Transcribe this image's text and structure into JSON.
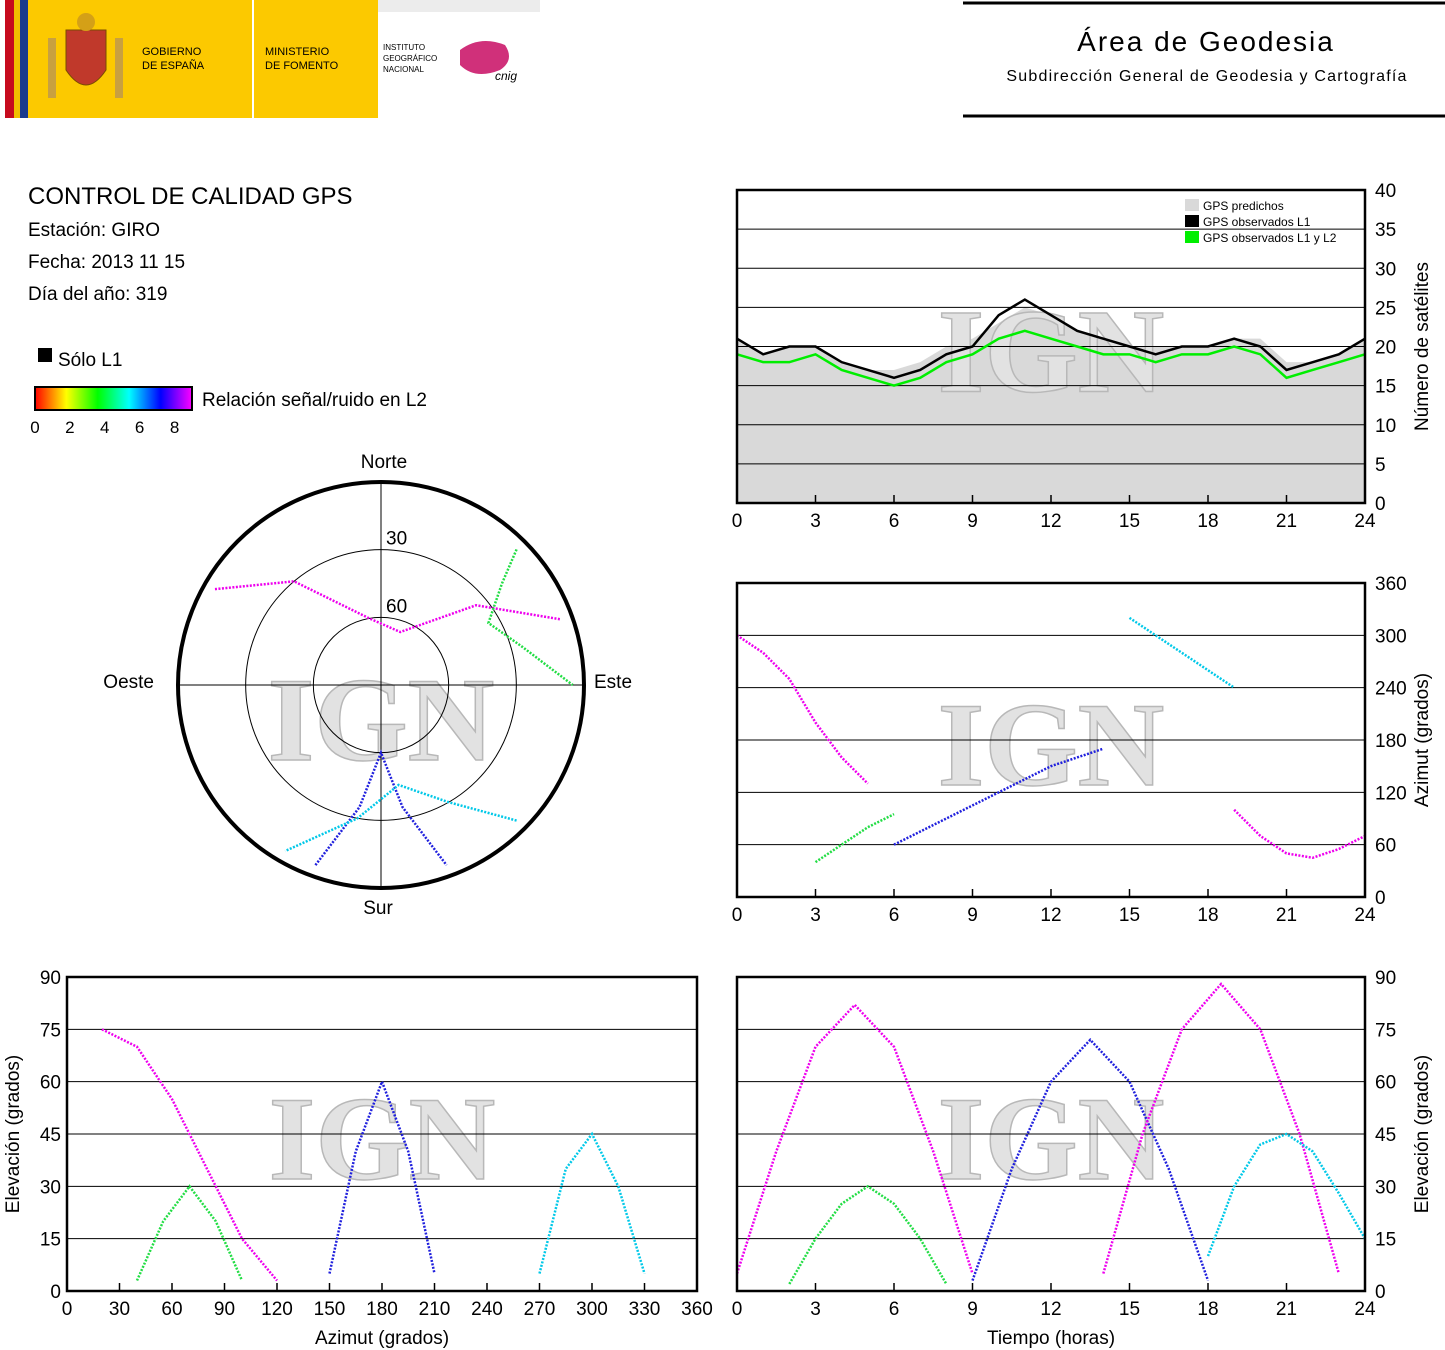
{
  "header": {
    "gov": [
      "GOBIERNO",
      "DE ESPAÑA"
    ],
    "ministry": [
      "MINISTERIO",
      "DE FOMENTO"
    ],
    "institute": [
      "INSTITUTO",
      "GEOGRÁFICO",
      "NACIONAL"
    ],
    "logo": "cnig",
    "title": "Área de Geodesia",
    "subtitle": "Subdirección General de Geodesia y Cartografía"
  },
  "info": {
    "title": "CONTROL DE CALIDAD GPS",
    "lines": [
      "Estación: GIRO",
      "Fecha: 2013 11 15",
      "Día del año: 319"
    ]
  },
  "legend": {
    "l1": "Sólo L1",
    "snr_label": "Relación señal/ruido en L2",
    "snr_lim": [
      0,
      9
    ],
    "snr_ticks": [
      0,
      2,
      4,
      6,
      8
    ],
    "snr_colors": [
      "#ff0000",
      "#ffff00",
      "#00ff00",
      "#00ffff",
      "#0000ff",
      "#ff00ff"
    ]
  },
  "watermark": "IGN",
  "chart_data": [
    {
      "type": "line",
      "x": [
        0,
        1,
        2,
        3,
        4,
        5,
        6,
        7,
        8,
        9,
        10,
        11,
        12,
        13,
        14,
        15,
        16,
        17,
        18,
        19,
        20,
        21,
        22,
        23,
        24
      ],
      "series": [
        {
          "name": "GPS predichos",
          "color": "#d9d9d9",
          "area": true,
          "values": [
            21,
            19,
            20,
            20,
            18,
            17,
            17,
            18,
            20,
            21,
            23,
            25,
            24,
            22,
            21,
            20,
            20,
            20,
            20,
            21,
            21,
            18,
            18,
            19,
            21
          ]
        },
        {
          "name": "GPS observados L1",
          "color": "#000000",
          "values": [
            21,
            19,
            20,
            20,
            18,
            17,
            16,
            17,
            19,
            20,
            24,
            26,
            24,
            22,
            21,
            20,
            19,
            20,
            20,
            21,
            20,
            17,
            18,
            19,
            21
          ]
        },
        {
          "name": "GPS observados L1 y L2",
          "color": "#00ee00",
          "values": [
            19,
            18,
            18,
            19,
            17,
            16,
            15,
            16,
            18,
            19,
            21,
            22,
            21,
            20,
            19,
            19,
            18,
            19,
            19,
            20,
            19,
            16,
            17,
            18,
            19
          ]
        }
      ],
      "xlim": [
        0,
        24
      ],
      "xticks": [
        0,
        3,
        6,
        9,
        12,
        15,
        18,
        21,
        24
      ],
      "ylim": [
        0,
        40
      ],
      "yticks": [
        0,
        5,
        10,
        15,
        20,
        25,
        30,
        35,
        40
      ],
      "ylabel": "Número de satélites",
      "y_axis_position": "right",
      "grid": true,
      "legend": "top-right"
    },
    {
      "type": "scatter",
      "series": [
        {
          "color": "#ee00ee",
          "x": [
            0,
            1,
            2,
            3,
            4,
            5
          ],
          "values": [
            300,
            280,
            250,
            200,
            160,
            130
          ]
        },
        {
          "color": "#2020dd",
          "x": [
            6,
            8,
            10,
            12,
            14
          ],
          "values": [
            60,
            90,
            120,
            150,
            170
          ]
        },
        {
          "color": "#00c8e8",
          "x": [
            15,
            16,
            17,
            18,
            19
          ],
          "values": [
            320,
            300,
            280,
            260,
            240
          ]
        },
        {
          "color": "#ee00ee",
          "x": [
            19,
            20,
            21,
            22,
            23,
            24
          ],
          "values": [
            100,
            70,
            50,
            45,
            55,
            70
          ]
        },
        {
          "color": "#22dd44",
          "x": [
            3,
            4,
            5,
            6
          ],
          "values": [
            40,
            60,
            80,
            95
          ]
        }
      ],
      "xlim": [
        0,
        24
      ],
      "xticks": [
        0,
        3,
        6,
        9,
        12,
        15,
        18,
        21,
        24
      ],
      "ylim": [
        0,
        360
      ],
      "yticks": [
        0,
        60,
        120,
        180,
        240,
        300,
        360
      ],
      "ylabel": "Azimut (grados)",
      "y_axis_position": "right",
      "grid": true
    },
    {
      "type": "polar",
      "directions": [
        "Norte",
        "Este",
        "Sur",
        "Oeste"
      ],
      "rlim": [
        90,
        0
      ],
      "rticks": [
        30,
        60
      ],
      "series": [
        {
          "color": "#ee00ee",
          "x": [
            300,
            320,
            350,
            20,
            50,
            70
          ],
          "values": [
            5,
            30,
            60,
            65,
            35,
            5
          ]
        },
        {
          "color": "#2020dd",
          "x": [
            200,
            190,
            180,
            170,
            160
          ],
          "values": [
            5,
            35,
            60,
            35,
            5
          ]
        },
        {
          "color": "#22dd44",
          "x": [
            45,
            50,
            60,
            75,
            90
          ],
          "values": [
            5,
            20,
            35,
            25,
            5
          ]
        },
        {
          "color": "#00c8e8",
          "x": [
            135,
            150,
            170,
            190,
            210
          ],
          "values": [
            5,
            30,
            45,
            30,
            5
          ]
        }
      ]
    },
    {
      "type": "scatter",
      "series": [
        {
          "color": "#ee00ee",
          "x": [
            20,
            40,
            60,
            80,
            100,
            120
          ],
          "values": [
            75,
            70,
            55,
            35,
            15,
            3
          ]
        },
        {
          "color": "#2020dd",
          "x": [
            150,
            165,
            180,
            195,
            210
          ],
          "values": [
            5,
            40,
            60,
            40,
            5
          ]
        },
        {
          "color": "#00c8e8",
          "x": [
            270,
            285,
            300,
            315,
            330
          ],
          "values": [
            5,
            35,
            45,
            30,
            5
          ]
        },
        {
          "color": "#22dd44",
          "x": [
            40,
            55,
            70,
            85,
            100
          ],
          "values": [
            3,
            20,
            30,
            20,
            3
          ]
        }
      ],
      "xlim": [
        0,
        360
      ],
      "xticks": [
        0,
        30,
        60,
        90,
        120,
        150,
        180,
        210,
        240,
        270,
        300,
        330,
        360
      ],
      "ylim": [
        0,
        90
      ],
      "yticks": [
        0,
        15,
        30,
        45,
        60,
        75,
        90
      ],
      "xlabel": "Azimut (grados)",
      "ylabel": "Elevación (grados)",
      "y_axis_position": "left",
      "grid": true
    },
    {
      "type": "scatter",
      "series": [
        {
          "color": "#ee00ee",
          "x": [
            0,
            1.5,
            3,
            4.5,
            6,
            7.5,
            9
          ],
          "values": [
            5,
            40,
            70,
            82,
            70,
            40,
            5
          ]
        },
        {
          "color": "#2020dd",
          "x": [
            9,
            10.5,
            12,
            13.5,
            15,
            16.5,
            18
          ],
          "values": [
            3,
            35,
            60,
            72,
            60,
            35,
            3
          ]
        },
        {
          "color": "#ee00ee",
          "x": [
            14,
            15.5,
            17,
            18.5,
            20,
            21.5,
            23
          ],
          "values": [
            5,
            45,
            75,
            88,
            75,
            45,
            5
          ]
        },
        {
          "color": "#22dd44",
          "x": [
            2,
            3,
            4,
            5,
            6,
            7,
            8
          ],
          "values": [
            2,
            15,
            25,
            30,
            25,
            15,
            2
          ]
        },
        {
          "color": "#00c8e8",
          "x": [
            18,
            19,
            20,
            21,
            22,
            23,
            24
          ],
          "values": [
            10,
            30,
            42,
            45,
            40,
            28,
            15
          ]
        }
      ],
      "xlim": [
        0,
        24
      ],
      "xticks": [
        0,
        3,
        6,
        9,
        12,
        15,
        18,
        21,
        24
      ],
      "ylim": [
        0,
        90
      ],
      "yticks": [
        0,
        15,
        30,
        45,
        60,
        75,
        90
      ],
      "xlabel": "Tiempo (horas)",
      "ylabel": "Elevación (grados)",
      "y_axis_position": "right",
      "grid": true
    }
  ]
}
